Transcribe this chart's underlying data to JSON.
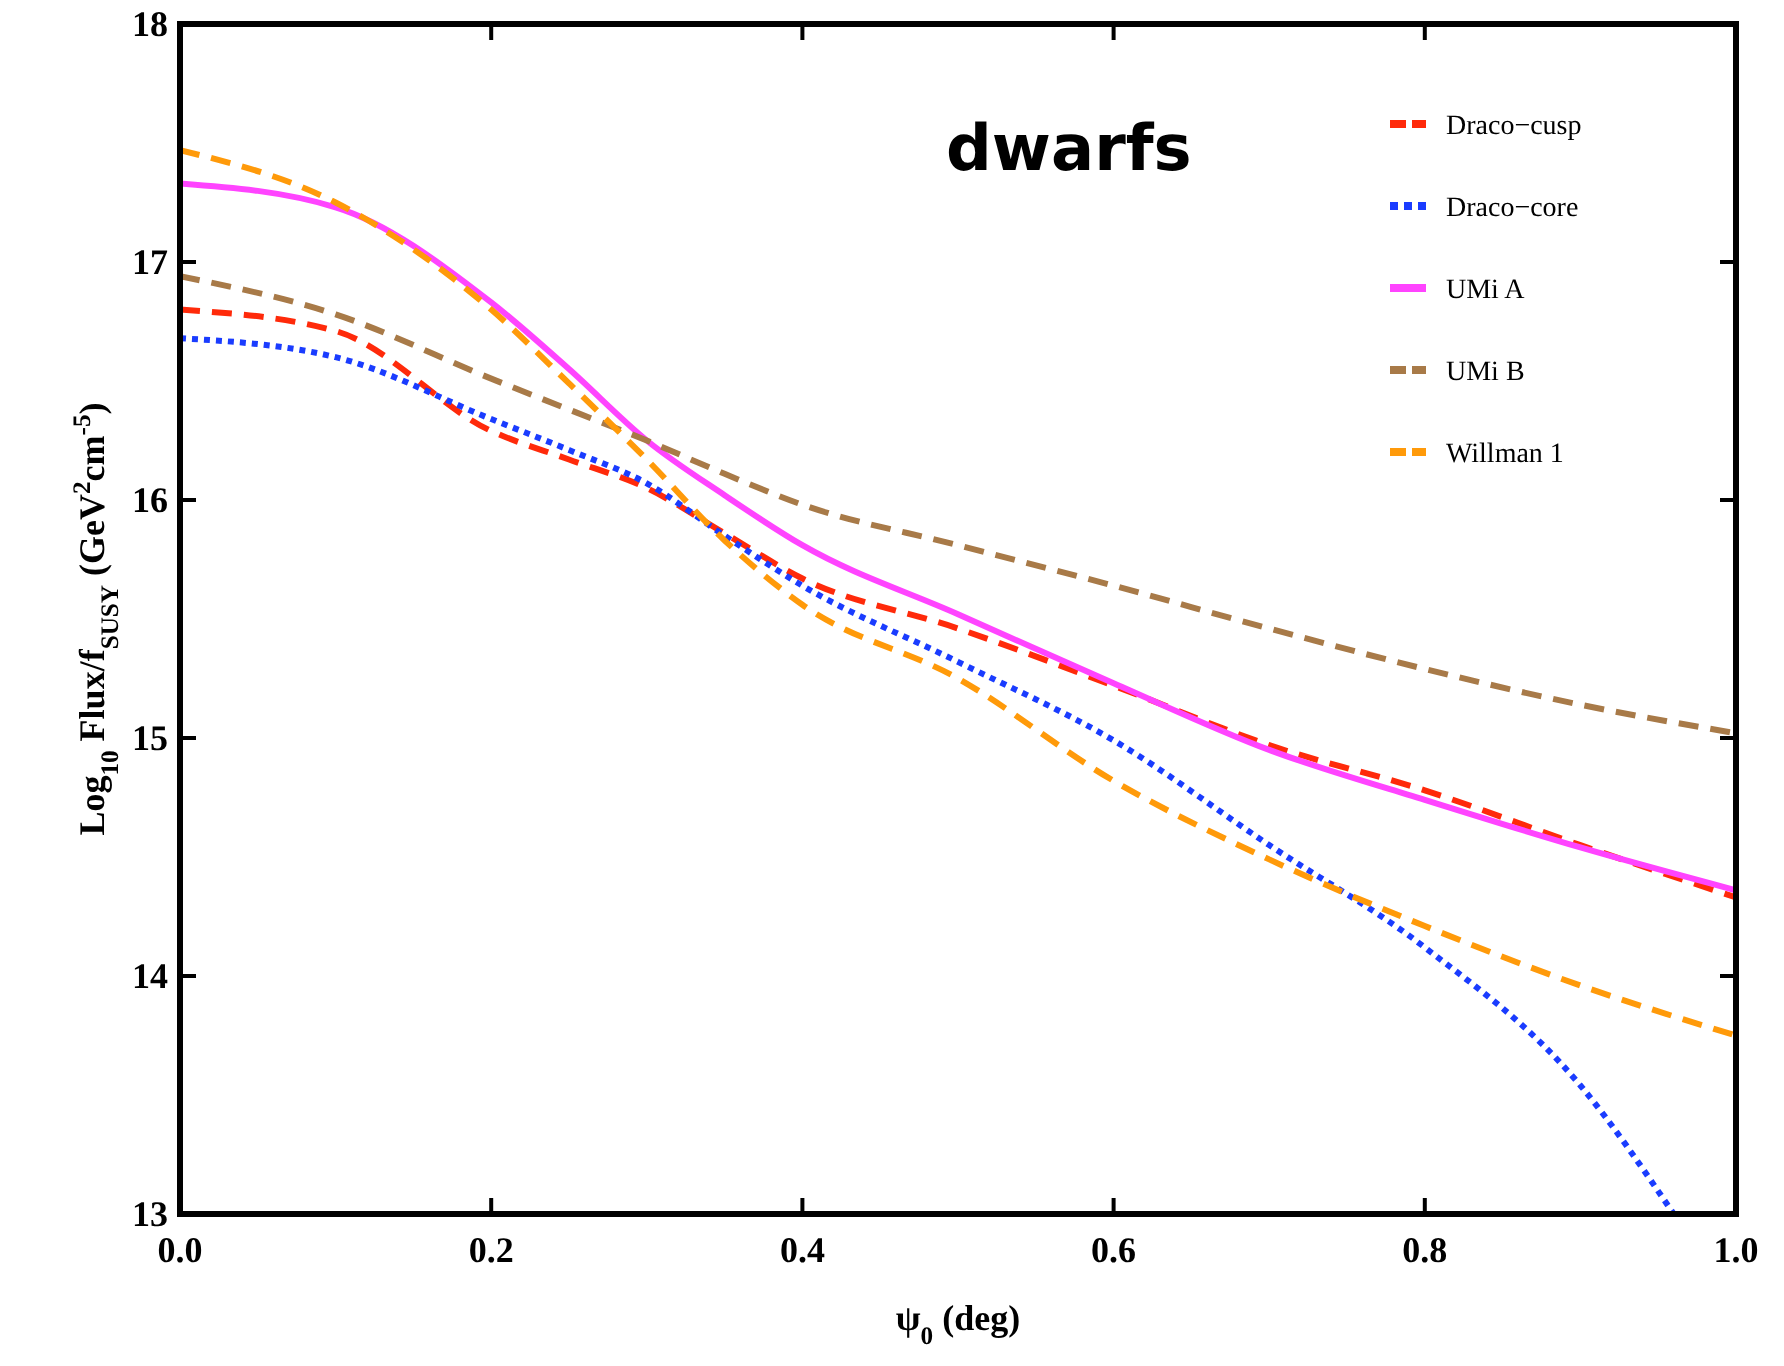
{
  "chart_data": {
    "type": "line",
    "title": "dwarfs",
    "xlabel": "ψ$_{0}$ (deg)",
    "ylabel": "Log$_{10}$ Flux/f$_{SUSY}$ (GeV$^{2}$cm$^{-5}$)",
    "x": [
      0,
      0.1,
      0.2,
      0.25,
      0.3,
      0.35,
      0.4,
      0.5,
      0.6,
      0.7,
      0.8,
      0.9,
      1.0
    ],
    "series": [
      {
        "name": "Draco−cusp",
        "color": "#ff2a0a",
        "line_style": "dashed",
        "values": [
          16.8,
          16.71,
          16.29,
          16.17,
          16.05,
          15.86,
          15.67,
          15.46,
          15.22,
          14.97,
          14.78,
          14.55,
          14.33
        ]
      },
      {
        "name": "Draco−core",
        "color": "#1a3cff",
        "line_style": "dotted",
        "x": [
          0,
          0.1,
          0.2,
          0.25,
          0.3,
          0.35,
          0.4,
          0.5,
          0.6,
          0.7,
          0.8,
          0.9,
          0.96
        ],
        "values": [
          16.68,
          16.6,
          16.34,
          16.21,
          16.07,
          15.85,
          15.64,
          15.32,
          14.99,
          14.55,
          14.12,
          13.54,
          13.0
        ]
      },
      {
        "name": "UMi A",
        "color": "#ff44ff",
        "line_style": "solid",
        "values": [
          17.33,
          17.23,
          16.83,
          16.55,
          16.25,
          16.02,
          15.81,
          15.52,
          15.23,
          14.95,
          14.74,
          14.54,
          14.36
        ]
      },
      {
        "name": "UMi B",
        "color": "#a87a48",
        "line_style": "dashed",
        "values": [
          16.94,
          16.78,
          16.51,
          16.38,
          16.25,
          16.11,
          15.98,
          15.81,
          15.64,
          15.46,
          15.29,
          15.14,
          15.02
        ]
      },
      {
        "name": "Willman 1",
        "color": "#ff9a0a",
        "line_style": "dashed",
        "values": [
          17.47,
          17.25,
          16.8,
          16.49,
          16.17,
          15.83,
          15.56,
          15.25,
          14.82,
          14.49,
          14.21,
          13.96,
          13.75
        ]
      }
    ],
    "xlim": [
      0,
      1
    ],
    "xticks": [
      {
        "value": 0,
        "label": "0.0"
      },
      {
        "value": 0.2,
        "label": "0.2"
      },
      {
        "value": 0.4,
        "label": "0.4"
      },
      {
        "value": 0.6,
        "label": "0.6"
      },
      {
        "value": 0.8,
        "label": "0.8"
      },
      {
        "value": 1,
        "label": "1.0"
      }
    ],
    "ylim": [
      13,
      18
    ],
    "yticks": [
      13,
      14,
      15,
      16,
      17,
      18
    ],
    "legend": "top right",
    "grid": false,
    "marker": "none"
  }
}
